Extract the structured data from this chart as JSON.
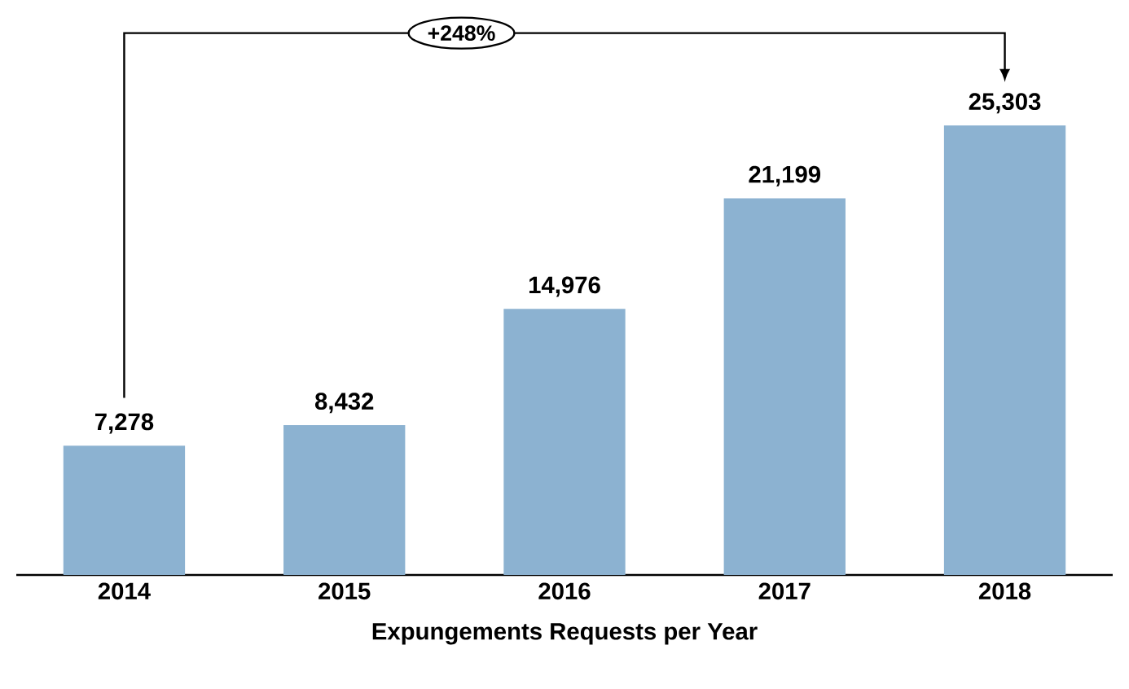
{
  "chart_data": {
    "type": "bar",
    "xlabel": "Expungements Requests per Year",
    "categories": [
      "2014",
      "2015",
      "2016",
      "2017",
      "2018"
    ],
    "values": [
      7278,
      8432,
      14976,
      21199,
      25303
    ],
    "value_labels": [
      "7,278",
      "8,432",
      "14,976",
      "21,199",
      "25,303"
    ],
    "color": "#8cb2d1",
    "annotations": [
      "+248%"
    ]
  }
}
